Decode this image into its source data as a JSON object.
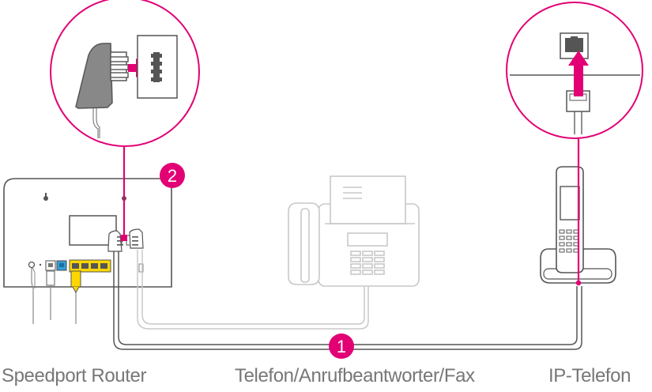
{
  "labels": {
    "router": "Speedport Router",
    "phone": "Telefon/Anrufbeantworter/Fax",
    "ip_phone": "IP-Telefon"
  },
  "badges": {
    "one": "1",
    "two": "2"
  },
  "colors": {
    "accent": "#E20074",
    "outline": "#555555",
    "light_gray": "#C8C8C8",
    "text": "#777777",
    "yellow": "#FFD700",
    "blue": "#2F9FD7"
  },
  "icons": [
    "tae-plug-icon",
    "tae-socket-icon",
    "rj45-socket-icon",
    "rj45-plug-icon",
    "arrow-right-icon",
    "arrow-up-icon"
  ]
}
